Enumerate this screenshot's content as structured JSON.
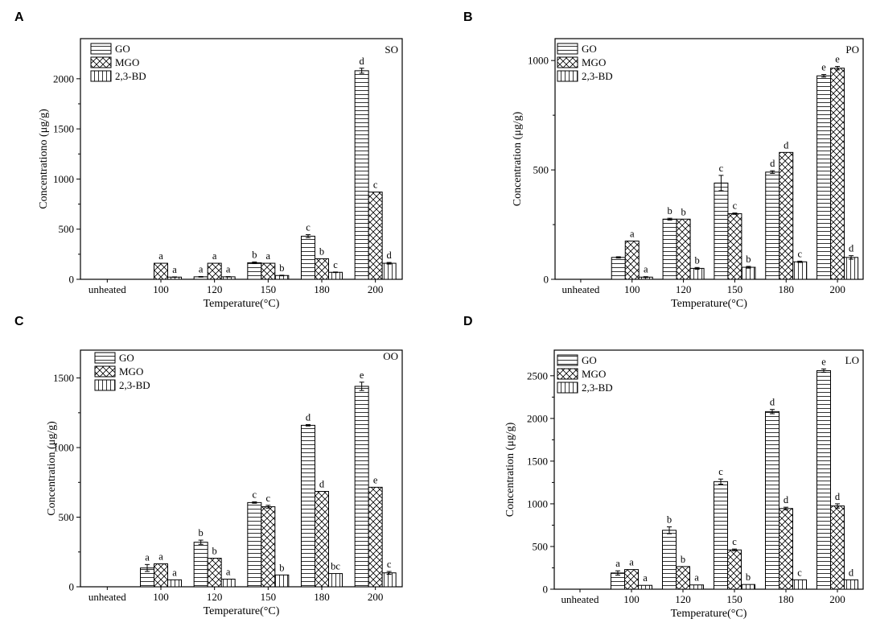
{
  "figure": {
    "categories": [
      "unheated",
      "100",
      "120",
      "150",
      "180",
      "200"
    ],
    "series_names": [
      "GO",
      "MGO",
      "2,3-BD"
    ],
    "xlabel": "Temperature(°C)"
  },
  "chart_data": [
    {
      "type": "bar",
      "panel": "A",
      "oil": "SO",
      "title": "",
      "xlabel": "Temperature(°C)",
      "ylabel": "Concentrationo (μg/g)",
      "ylim": [
        0,
        2400
      ],
      "yticks": [
        0,
        500,
        1000,
        1500,
        2000
      ],
      "categories": [
        "unheated",
        "100",
        "120",
        "150",
        "180",
        "200"
      ],
      "series": [
        {
          "name": "GO",
          "values": [
            0,
            0,
            25,
            165,
            430,
            2080
          ],
          "errors": [
            0,
            0,
            3,
            8,
            15,
            25
          ],
          "labels": [
            "",
            "",
            "a",
            "b",
            "c",
            "d"
          ]
        },
        {
          "name": "MGO",
          "values": [
            0,
            160,
            160,
            160,
            205,
            870
          ],
          "errors": [
            0,
            0,
            0,
            0,
            0,
            0
          ],
          "labels": [
            "",
            "a",
            "a",
            "a",
            "b",
            "c"
          ]
        },
        {
          "name": "2,3-BD",
          "values": [
            0,
            22,
            25,
            38,
            70,
            160
          ],
          "errors": [
            0,
            2,
            2,
            3,
            3,
            8
          ],
          "labels": [
            "",
            "a",
            "a",
            "b",
            "c",
            "d"
          ]
        }
      ]
    },
    {
      "type": "bar",
      "panel": "B",
      "oil": "PO",
      "title": "",
      "xlabel": "Temperature(°C)",
      "ylabel": "Concentration (μg/g)",
      "ylim": [
        0,
        1100
      ],
      "yticks": [
        0,
        500,
        1000
      ],
      "categories": [
        "unheated",
        "100",
        "120",
        "150",
        "180",
        "200"
      ],
      "series": [
        {
          "name": "GO",
          "values": [
            0,
            100,
            275,
            440,
            490,
            930
          ],
          "errors": [
            0,
            3,
            4,
            35,
            6,
            6
          ],
          "labels": [
            "",
            "",
            "b",
            "c",
            "d",
            "e"
          ]
        },
        {
          "name": "MGO",
          "values": [
            0,
            175,
            275,
            300,
            580,
            965
          ],
          "errors": [
            0,
            0,
            0,
            3,
            0,
            8
          ],
          "labels": [
            "",
            "a",
            "b",
            "c",
            "d",
            "e"
          ]
        },
        {
          "name": "2,3-BD",
          "values": [
            0,
            10,
            50,
            55,
            80,
            100
          ],
          "errors": [
            0,
            2,
            4,
            4,
            3,
            8
          ],
          "labels": [
            "",
            "a",
            "b",
            "b",
            "c",
            "d"
          ]
        }
      ]
    },
    {
      "type": "bar",
      "panel": "C",
      "oil": "OO",
      "title": "",
      "xlabel": "Temperature(°C)",
      "ylabel": "Concentration (μg/g)",
      "ylim": [
        0,
        1700
      ],
      "yticks": [
        0,
        500,
        1000,
        1500
      ],
      "categories": [
        "unheated",
        "100",
        "120",
        "150",
        "180",
        "200"
      ],
      "series": [
        {
          "name": "GO",
          "values": [
            0,
            135,
            320,
            605,
            1160,
            1440
          ],
          "errors": [
            0,
            25,
            15,
            5,
            5,
            30
          ],
          "labels": [
            "",
            "a",
            "b",
            "c",
            "d",
            "e"
          ]
        },
        {
          "name": "MGO",
          "values": [
            0,
            165,
            205,
            575,
            685,
            715
          ],
          "errors": [
            0,
            0,
            0,
            10,
            0,
            0
          ],
          "labels": [
            "",
            "a",
            "b",
            "c",
            "d",
            "e"
          ]
        },
        {
          "name": "2,3-BD",
          "values": [
            0,
            50,
            55,
            85,
            95,
            100
          ],
          "errors": [
            0,
            0,
            0,
            0,
            0,
            10
          ],
          "labels": [
            "",
            "a",
            "a",
            "b",
            "bc",
            "c"
          ]
        }
      ]
    },
    {
      "type": "bar",
      "panel": "D",
      "oil": "LO",
      "title": "",
      "xlabel": "Temperature(°C)",
      "ylabel": "Concentration (μg/g)",
      "ylim": [
        0,
        2800
      ],
      "yticks": [
        0,
        500,
        1000,
        1500,
        2000,
        2500
      ],
      "categories": [
        "unheated",
        "100",
        "120",
        "150",
        "180",
        "200"
      ],
      "series": [
        {
          "name": "GO",
          "values": [
            0,
            190,
            690,
            1260,
            2080,
            2560
          ],
          "errors": [
            0,
            25,
            40,
            30,
            25,
            20
          ],
          "labels": [
            "",
            "a",
            "b",
            "c",
            "d",
            "e"
          ]
        },
        {
          "name": "MGO",
          "values": [
            0,
            230,
            265,
            460,
            945,
            975
          ],
          "errors": [
            0,
            0,
            0,
            10,
            15,
            25
          ],
          "labels": [
            "",
            "a",
            "b",
            "c",
            "d",
            "d"
          ]
        },
        {
          "name": "2,3-BD",
          "values": [
            0,
            45,
            50,
            55,
            110,
            110
          ],
          "errors": [
            0,
            0,
            0,
            0,
            0,
            0
          ],
          "labels": [
            "",
            "a",
            "a",
            "b",
            "c",
            "d"
          ]
        }
      ]
    }
  ]
}
